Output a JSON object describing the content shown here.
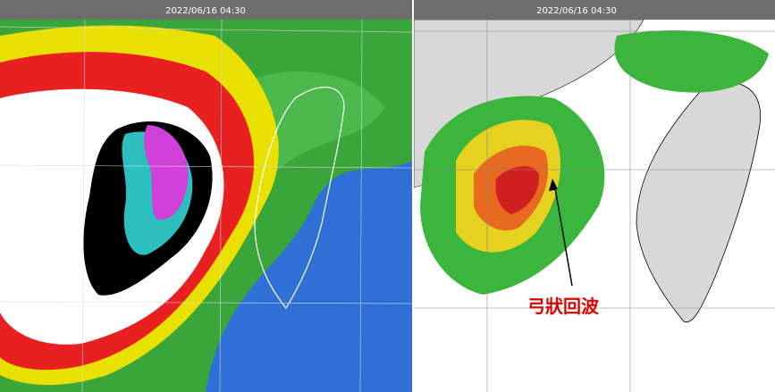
{
  "panels": [
    {
      "timestamp": "2022/06/16 04:30"
    },
    {
      "timestamp": "2022/06/16 04:30",
      "annotation": "弓狀回波"
    }
  ]
}
